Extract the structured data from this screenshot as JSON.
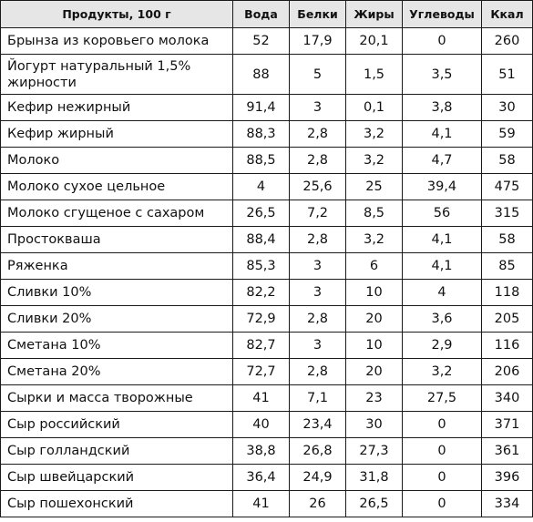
{
  "table": {
    "headers": [
      "Продукты, 100 г",
      "Вода",
      "Белки",
      "Жиры",
      "Углеводы",
      "Ккал"
    ],
    "rows": [
      {
        "name": "Брынза из коровьего молока",
        "values": [
          "52",
          "17,9",
          "20,1",
          "0",
          "260"
        ]
      },
      {
        "name": "Йогурт натуральный 1,5% жирности",
        "values": [
          "88",
          "5",
          "1,5",
          "3,5",
          "51"
        ]
      },
      {
        "name": "Кефир нежирный",
        "values": [
          "91,4",
          "3",
          "0,1",
          "3,8",
          "30"
        ]
      },
      {
        "name": "Кефир жирный",
        "values": [
          "88,3",
          "2,8",
          "3,2",
          "4,1",
          "59"
        ]
      },
      {
        "name": "Молоко",
        "values": [
          "88,5",
          "2,8",
          "3,2",
          "4,7",
          "58"
        ]
      },
      {
        "name": "Молоко сухое цельное",
        "values": [
          "4",
          "25,6",
          "25",
          "39,4",
          "475"
        ]
      },
      {
        "name": "Молоко сгущеное с сахаром",
        "values": [
          "26,5",
          "7,2",
          "8,5",
          "56",
          "315"
        ]
      },
      {
        "name": "Простокваша",
        "values": [
          "88,4",
          "2,8",
          "3,2",
          "4,1",
          "58"
        ]
      },
      {
        "name": "Ряженка",
        "values": [
          "85,3",
          "3",
          "6",
          "4,1",
          "85"
        ]
      },
      {
        "name": "Сливки 10%",
        "values": [
          "82,2",
          "3",
          "10",
          "4",
          "118"
        ]
      },
      {
        "name": "Сливки 20%",
        "values": [
          "72,9",
          "2,8",
          "20",
          "3,6",
          "205"
        ]
      },
      {
        "name": "Сметана 10%",
        "values": [
          "82,7",
          "3",
          "10",
          "2,9",
          "116"
        ]
      },
      {
        "name": "Сметана 20%",
        "values": [
          "72,7",
          "2,8",
          "20",
          "3,2",
          "206"
        ]
      },
      {
        "name": "Сырки и масса творожные",
        "values": [
          "41",
          "7,1",
          "23",
          "27,5",
          "340"
        ]
      },
      {
        "name": "Сыр российский",
        "values": [
          "40",
          "23,4",
          "30",
          "0",
          "371"
        ]
      },
      {
        "name": "Сыр голландский",
        "values": [
          "38,8",
          "26,8",
          "27,3",
          "0",
          "361"
        ]
      },
      {
        "name": "Сыр швейцарский",
        "values": [
          "36,4",
          "24,9",
          "31,8",
          "0",
          "396"
        ]
      },
      {
        "name": "Сыр пошехонский",
        "values": [
          "41",
          "26",
          "26,5",
          "0",
          "334"
        ]
      }
    ]
  }
}
